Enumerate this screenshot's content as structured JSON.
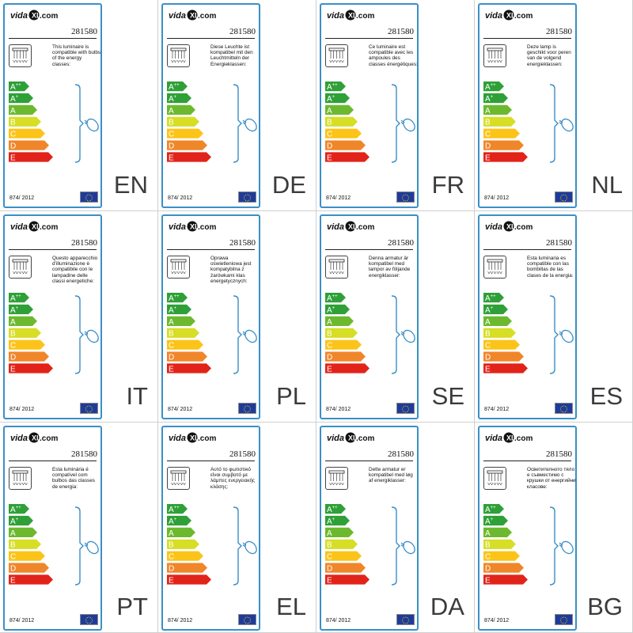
{
  "brand": {
    "logo_text": "vidaXL.com"
  },
  "classes": [
    "A++",
    "A+",
    "A",
    "B",
    "C",
    "D",
    "E"
  ],
  "class_colors": [
    "#2fa037",
    "#2fa037",
    "#6cb92f",
    "#d6de25",
    "#fcc419",
    "#f0862a",
    "#e2231a"
  ],
  "accent": "#3a8fc7",
  "labels": [
    {
      "code": "EN",
      "article": "281580",
      "regulation": "874/ 2012",
      "text": "This luminaire is compatible with bulbs of the energy classes:"
    },
    {
      "code": "DE",
      "article": "281580",
      "regulation": "874/ 2012",
      "text": "Diese Leuchte ist kompatibel mit den Leuchtmitteln der Energieklassen:"
    },
    {
      "code": "FR",
      "article": "281580",
      "regulation": "874/ 2012",
      "text": "Ce luminaire est compatible avec les ampoules des classes énergétiques:"
    },
    {
      "code": "NL",
      "article": "281580",
      "regulation": "874/ 2012",
      "text": "Deze lamp is geschikt voor peren van de volgend energieklassen:"
    },
    {
      "code": "IT",
      "article": "281580",
      "regulation": "874/ 2012",
      "text": "Questo apparecchio d'illuminazione è compatibile con le lampadine delle classi energetiche:"
    },
    {
      "code": "PL",
      "article": "281580",
      "regulation": "874/ 2012",
      "text": "Oprawa oświetleniowa jest kompatybilna z żarówkami klas energetycznych:"
    },
    {
      "code": "SE",
      "article": "281580",
      "regulation": "874/ 2012",
      "text": "Denna armatur är kompatibel med lampor av följande energiklasser:"
    },
    {
      "code": "ES",
      "article": "281580",
      "regulation": "874/ 2012",
      "text": "Esta luminaria es compatible con las bombillas de las clases de la energia:"
    },
    {
      "code": "PT",
      "article": "281580",
      "regulation": "874/ 2012",
      "text": "Esta luminária é compatível com bulbos das classes de energia:"
    },
    {
      "code": "EL",
      "article": "281580",
      "regulation": "874/ 2012",
      "text": "Αυτό το φωτιστικό είναι συμβατό με λάμπες ενεργειακής κλάσης:"
    },
    {
      "code": "DA",
      "article": "281580",
      "regulation": "874/ 2012",
      "text": "Dette armatur er kompatibel med løg af energiklasser:"
    },
    {
      "code": "BG",
      "article": "281580",
      "regulation": "874/ 2012",
      "text": "Осветителното тяло е съвместимо с крушки от енергийни класове:"
    }
  ]
}
